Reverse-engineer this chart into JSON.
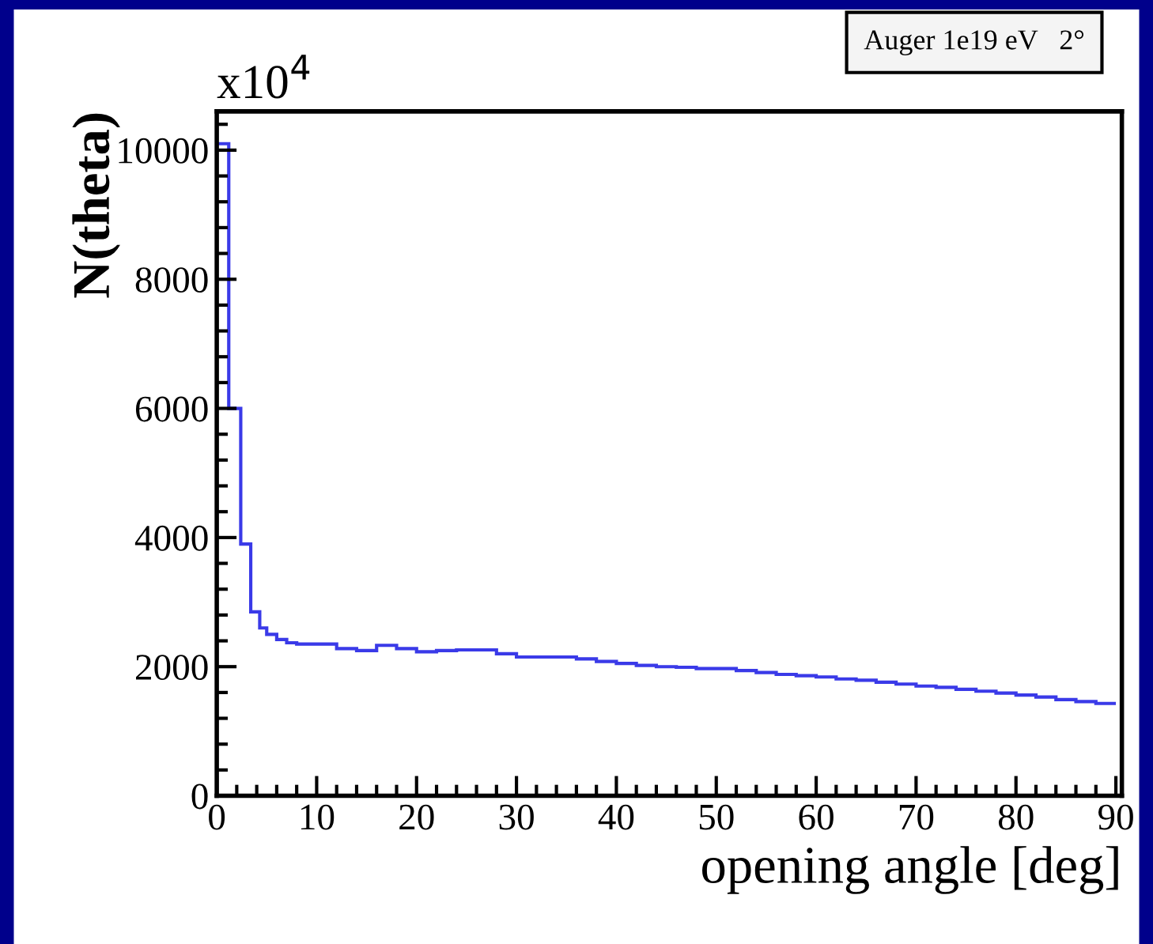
{
  "chart_data": {
    "type": "histogram",
    "xlabel": "opening angle [deg]",
    "ylabel": "N(theta)",
    "annotations": [
      "x10$^{4}$",
      "Auger 1e19 eV   2°"
    ],
    "bins": [
      0,
      1.2,
      2.4,
      3.4,
      4.3,
      5,
      6,
      7,
      8,
      10,
      12,
      14,
      16,
      18,
      20,
      22,
      24,
      26,
      28,
      30,
      32,
      34,
      36,
      38,
      40,
      42,
      44,
      46,
      48,
      50,
      52,
      54,
      56,
      58,
      60,
      62,
      64,
      66,
      68,
      70,
      72,
      74,
      76,
      78,
      80,
      82,
      84,
      86,
      88,
      90
    ],
    "values": [
      10100,
      6000,
      3900,
      2850,
      2600,
      2500,
      2420,
      2370,
      2350,
      2350,
      2280,
      2250,
      2330,
      2280,
      2230,
      2250,
      2260,
      2260,
      2200,
      2150,
      2150,
      2150,
      2120,
      2080,
      2050,
      2020,
      2000,
      1990,
      1970,
      1970,
      1940,
      1910,
      1880,
      1860,
      1840,
      1810,
      1790,
      1760,
      1730,
      1700,
      1680,
      1650,
      1620,
      1590,
      1560,
      1530,
      1490,
      1460,
      1430
    ],
    "color": "#3a3ae8",
    "xlim": [
      0,
      90.6
    ],
    "ylim": [
      0,
      10600
    ],
    "xticks": [
      0,
      10,
      20,
      30,
      40,
      50,
      60,
      70,
      80,
      90
    ],
    "yticks": [
      0,
      2000,
      4000,
      6000,
      8000,
      10000
    ],
    "grid": false,
    "legend": false
  }
}
